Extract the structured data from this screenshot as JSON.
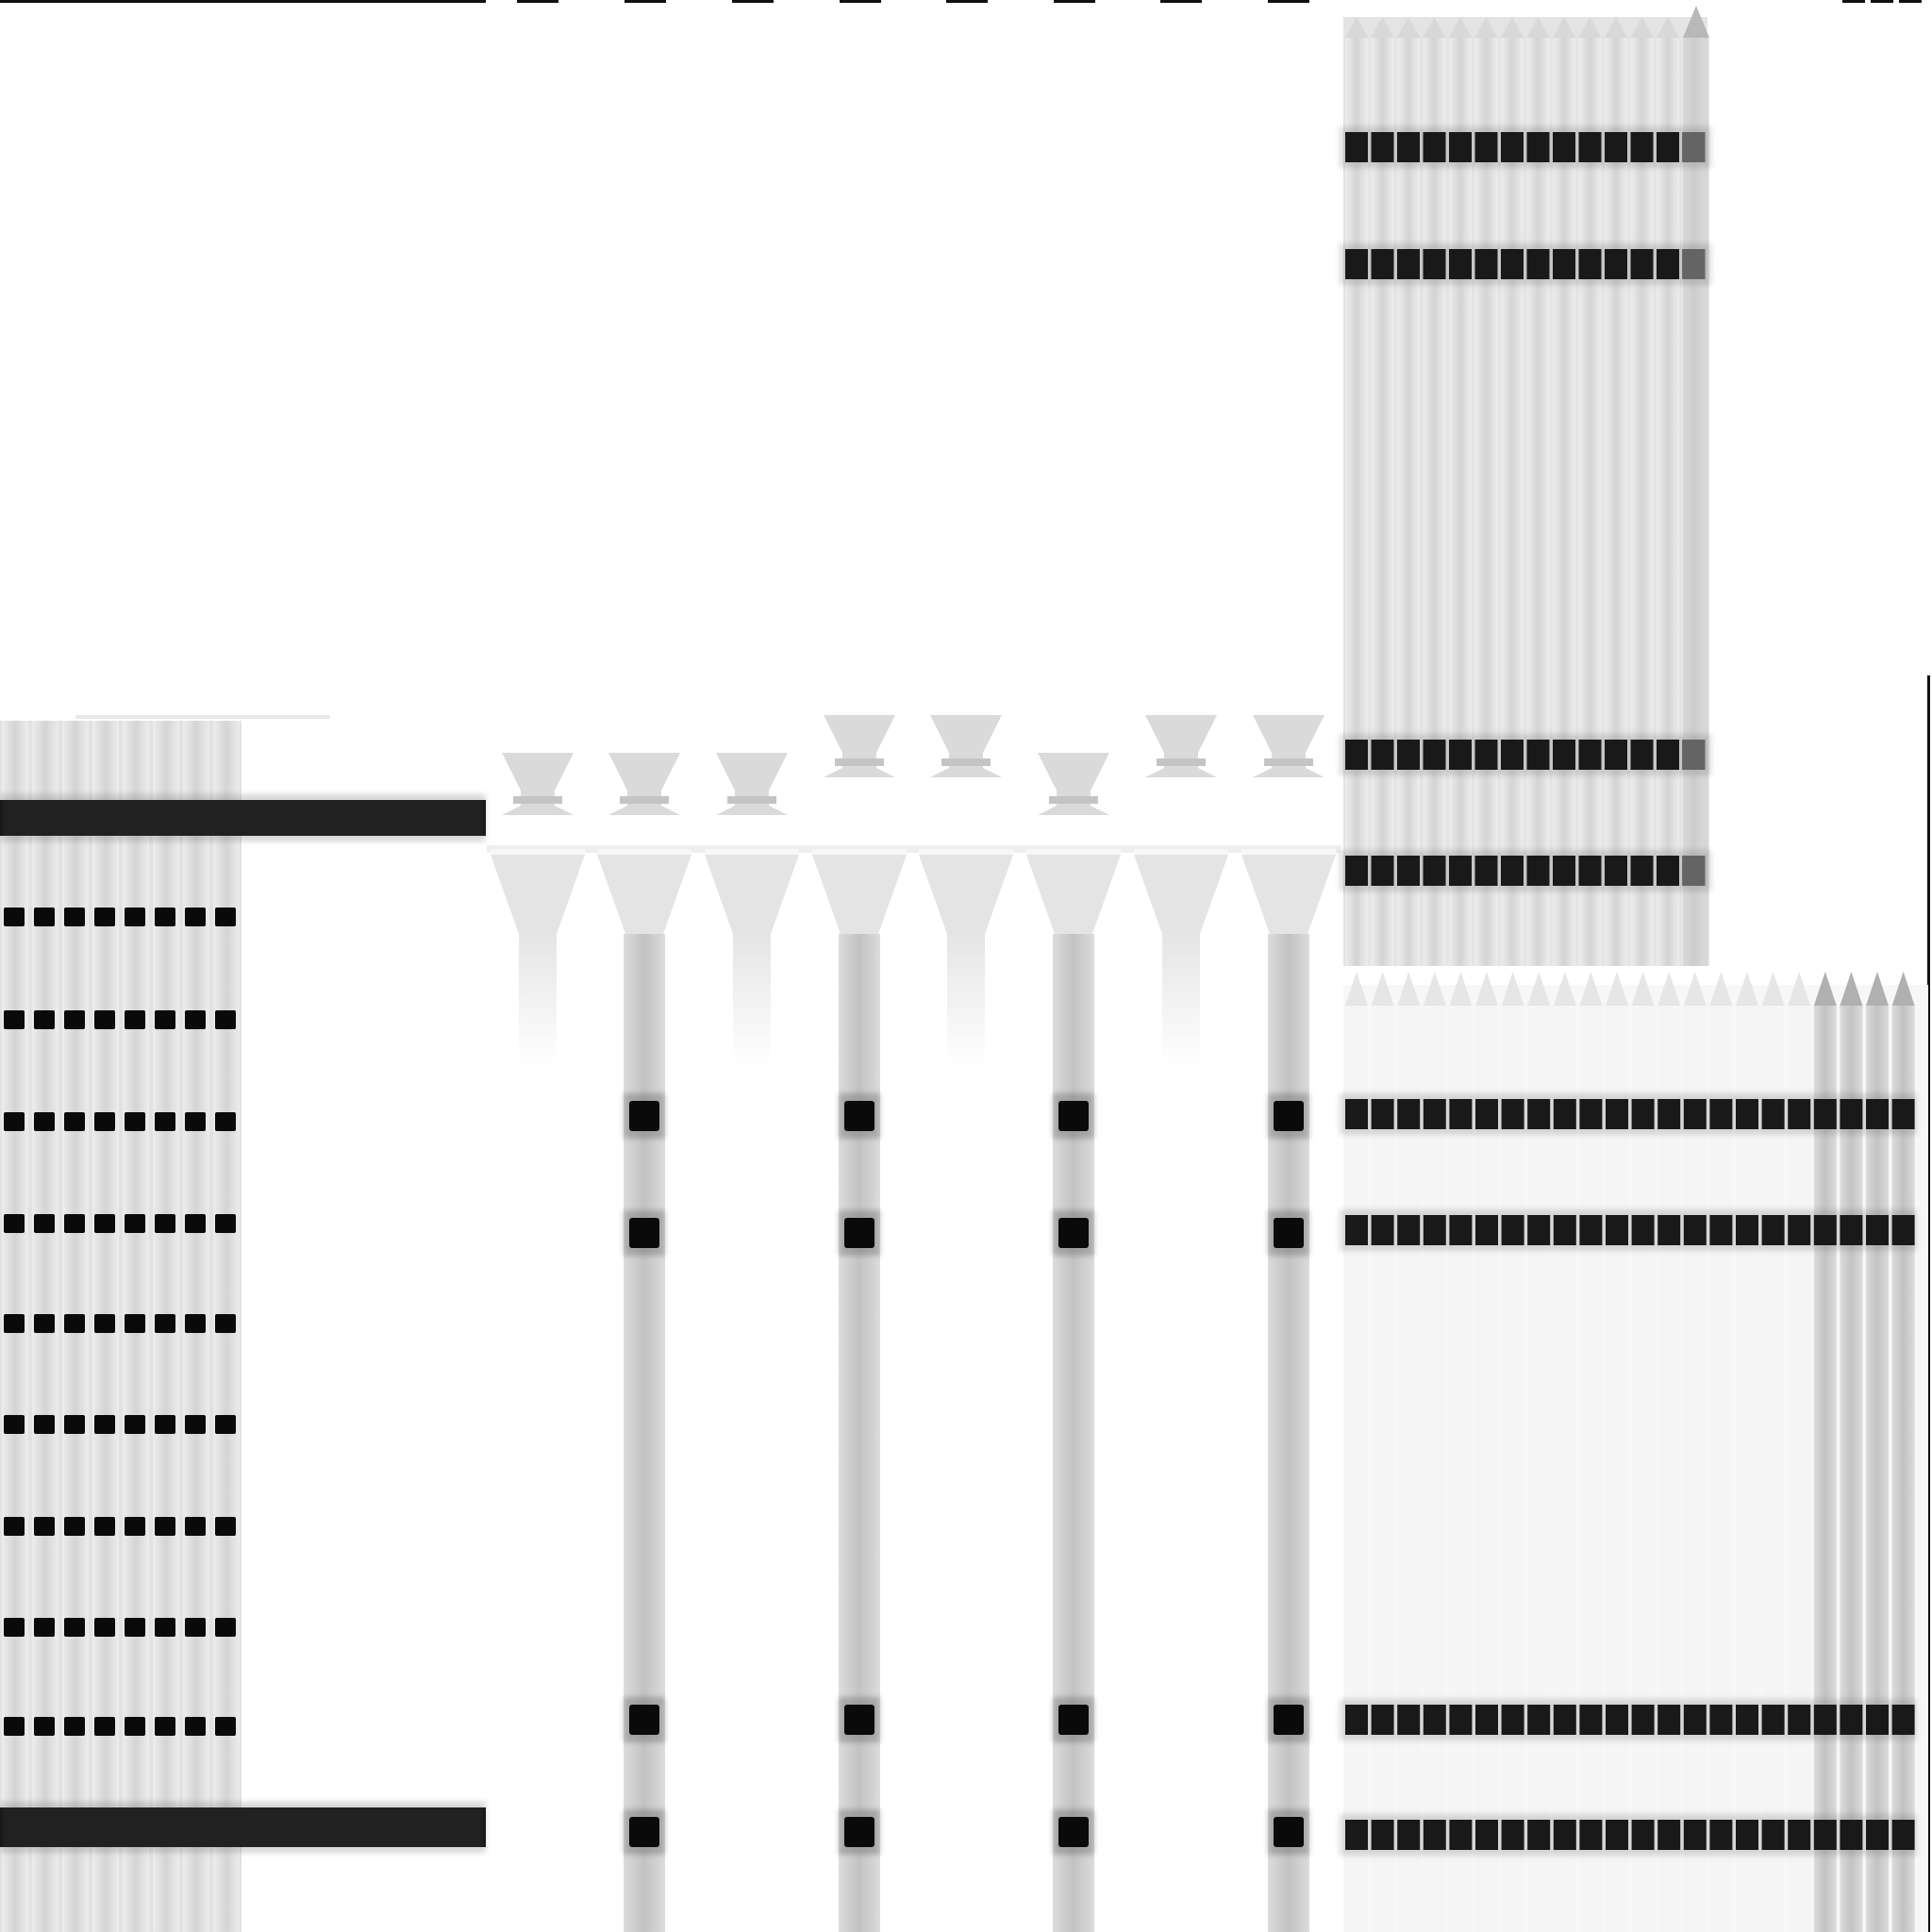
{
  "image": {
    "description_kind": "gel-like composite of vertical lanes with dark bands",
    "background_color": "#ffffff",
    "band_color": "#0a0a0a",
    "lane_light": "#e6e6e6",
    "lane_mid": "#cfcfcf",
    "lane_dark": "#bcbcbc"
  },
  "panels": [
    {
      "name": "panel-left-ladder",
      "lanes": 8,
      "band_rows": 9,
      "full_width_bands": 2
    },
    {
      "name": "panel-middle-wells",
      "lanes": 8,
      "loaded_lanes": 4,
      "bands_per_loaded_lane": 4
    },
    {
      "name": "panel-top-right",
      "lanes": 14,
      "bands_per_lane": 4
    },
    {
      "name": "panel-bottom-right",
      "lanes": 22,
      "bands_per_lane": 4
    }
  ]
}
